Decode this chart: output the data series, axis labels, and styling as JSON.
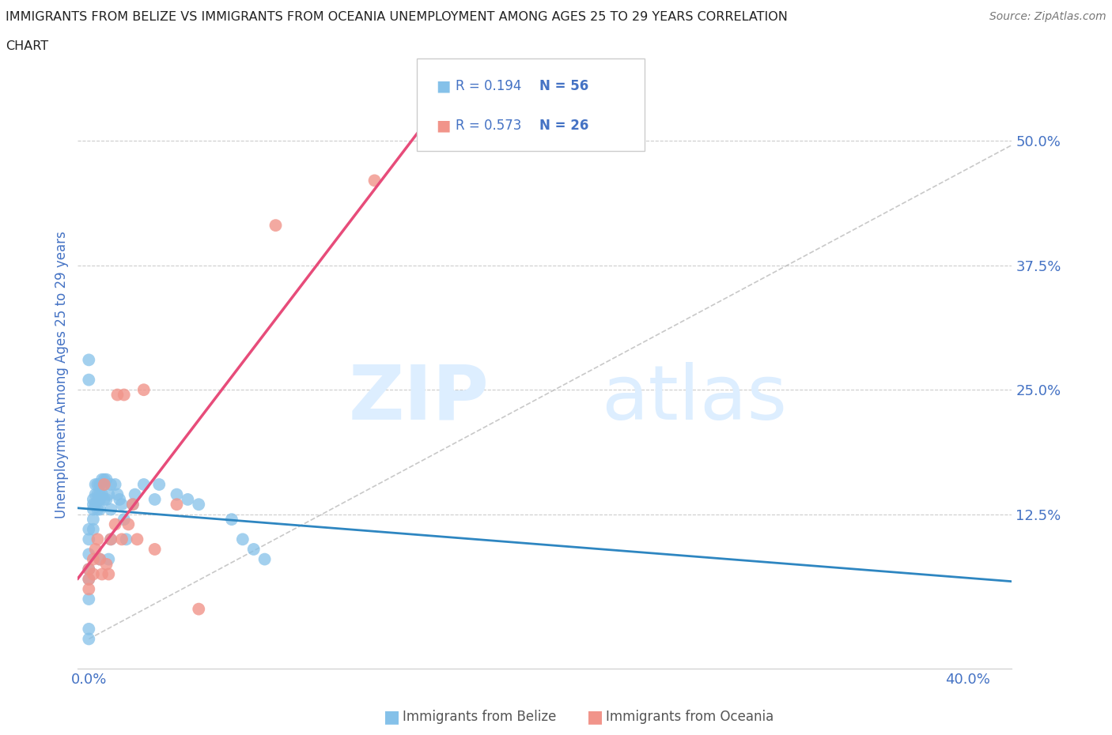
{
  "title_line1": "IMMIGRANTS FROM BELIZE VS IMMIGRANTS FROM OCEANIA UNEMPLOYMENT AMONG AGES 25 TO 29 YEARS CORRELATION",
  "title_line2": "CHART",
  "source": "Source: ZipAtlas.com",
  "ylabel": "Unemployment Among Ages 25 to 29 years",
  "xlabel_ticks": [
    "0.0%",
    "",
    "",
    "",
    "40.0%"
  ],
  "xlabel_vals": [
    0.0,
    0.1,
    0.2,
    0.3,
    0.4
  ],
  "ylabel_ticks": [
    "12.5%",
    "25.0%",
    "37.5%",
    "50.0%"
  ],
  "ylabel_vals": [
    0.125,
    0.25,
    0.375,
    0.5
  ],
  "xlim": [
    -0.005,
    0.42
  ],
  "ylim": [
    -0.03,
    0.56
  ],
  "belize_color": "#85c1e9",
  "oceania_color": "#f1948a",
  "belize_line_color": "#2e86c1",
  "oceania_line_color": "#e74c7a",
  "ref_line_color": "#bbbbbb",
  "watermark_color": "#ddeeff",
  "belize_x": [
    0.0,
    0.0,
    0.0,
    0.0,
    0.0,
    0.0,
    0.0,
    0.0,
    0.0,
    0.0,
    0.002,
    0.002,
    0.002,
    0.002,
    0.002,
    0.003,
    0.003,
    0.003,
    0.004,
    0.004,
    0.004,
    0.005,
    0.005,
    0.005,
    0.005,
    0.005,
    0.006,
    0.006,
    0.007,
    0.007,
    0.007,
    0.008,
    0.008,
    0.009,
    0.009,
    0.01,
    0.01,
    0.01,
    0.012,
    0.013,
    0.014,
    0.015,
    0.016,
    0.017,
    0.02,
    0.021,
    0.025,
    0.03,
    0.032,
    0.04,
    0.045,
    0.05,
    0.065,
    0.07,
    0.075,
    0.08
  ],
  "belize_y": [
    0.28,
    0.26,
    0.11,
    0.1,
    0.085,
    0.07,
    0.06,
    0.04,
    0.01,
    0.0,
    0.14,
    0.135,
    0.13,
    0.12,
    0.11,
    0.155,
    0.145,
    0.135,
    0.155,
    0.145,
    0.13,
    0.155,
    0.145,
    0.14,
    0.13,
    0.08,
    0.16,
    0.145,
    0.16,
    0.155,
    0.14,
    0.16,
    0.14,
    0.145,
    0.08,
    0.155,
    0.13,
    0.1,
    0.155,
    0.145,
    0.14,
    0.135,
    0.12,
    0.1,
    0.135,
    0.145,
    0.155,
    0.14,
    0.155,
    0.145,
    0.14,
    0.135,
    0.12,
    0.1,
    0.09,
    0.08
  ],
  "oceania_x": [
    0.0,
    0.0,
    0.0,
    0.002,
    0.002,
    0.003,
    0.004,
    0.005,
    0.006,
    0.007,
    0.008,
    0.009,
    0.01,
    0.012,
    0.013,
    0.015,
    0.016,
    0.018,
    0.02,
    0.022,
    0.025,
    0.03,
    0.04,
    0.05,
    0.085,
    0.13
  ],
  "oceania_y": [
    0.07,
    0.06,
    0.05,
    0.08,
    0.065,
    0.09,
    0.1,
    0.08,
    0.065,
    0.155,
    0.075,
    0.065,
    0.1,
    0.115,
    0.245,
    0.1,
    0.245,
    0.115,
    0.135,
    0.1,
    0.25,
    0.09,
    0.135,
    0.03,
    0.415,
    0.46
  ],
  "background_color": "#ffffff",
  "grid_color": "#cccccc",
  "title_color": "#222222",
  "axis_label_color": "#4472c4",
  "tick_label_color": "#4472c4",
  "legend_belize_R": "R = 0.194",
  "legend_belize_N": "N = 56",
  "legend_oceania_R": "R = 0.573",
  "legend_oceania_N": "N = 26"
}
